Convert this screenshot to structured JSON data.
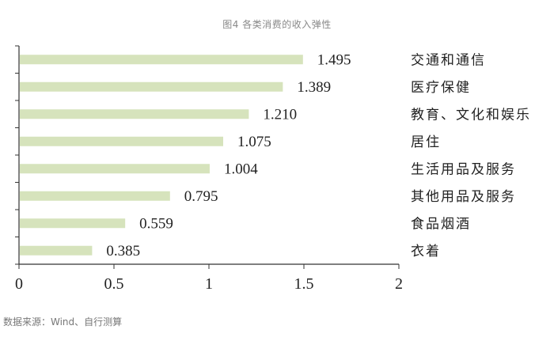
{
  "title": "图4 各类消费的收入弹性",
  "source": "数据来源：Wind、自行测算",
  "colors": {
    "bar": "#d6e3bc",
    "axis": "#333333",
    "text": "#222222"
  },
  "chart_data": {
    "type": "bar",
    "orientation": "horizontal",
    "title": "图4 各类消费的收入弹性",
    "categories": [
      "交通和通信",
      "医疗保健",
      "教育、文化和娱乐",
      "居住",
      "生活用品及服务",
      "其他用品及服务",
      "食品烟酒",
      "衣着"
    ],
    "values": [
      1.495,
      1.389,
      1.21,
      1.075,
      1.004,
      0.795,
      0.559,
      0.385
    ],
    "value_labels": [
      "1.495",
      "1.389",
      "1.210",
      "1.075",
      "1.004",
      "0.795",
      "0.559",
      "0.385"
    ],
    "xlim": [
      0,
      2
    ],
    "xticks": [
      0,
      0.5,
      1,
      1.5,
      2
    ],
    "xtick_labels": [
      "0",
      "0.5",
      "1",
      "1.5",
      "2"
    ],
    "xlabel": "",
    "ylabel": "",
    "grid": false,
    "legend": "none",
    "category_label_position": "right"
  }
}
